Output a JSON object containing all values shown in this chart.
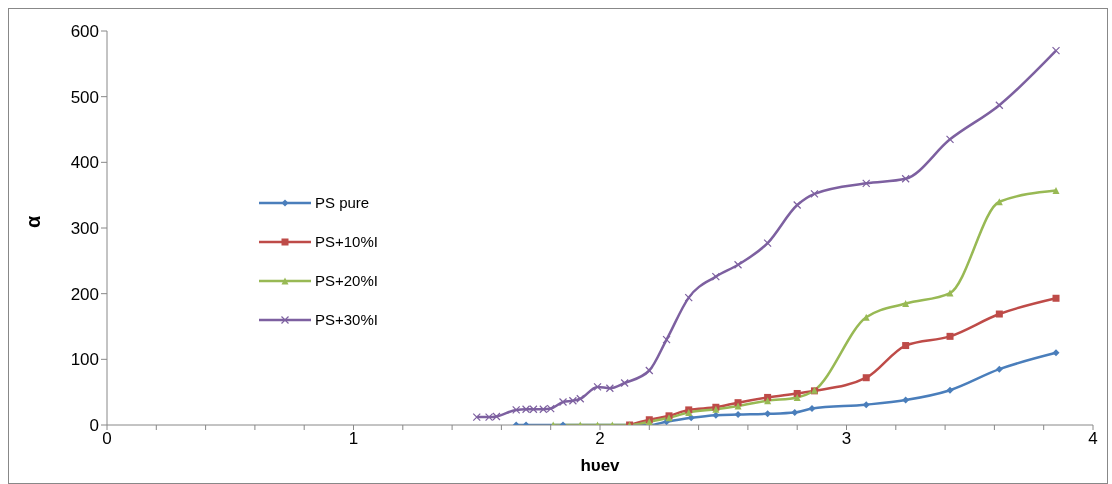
{
  "chart_data": {
    "type": "line",
    "xlabel": "hυev",
    "ylabel": "α",
    "xlim": [
      0,
      4
    ],
    "ylim": [
      0,
      600
    ],
    "xticks": [
      0,
      {
        "value": 0.2,
        "label": null
      },
      {
        "value": 0.4,
        "label": null
      },
      {
        "value": 0.6,
        "label": null
      },
      {
        "value": 0.8,
        "label": null
      },
      1,
      {
        "value": 1.2,
        "label": null
      },
      {
        "value": 1.4,
        "label": null
      },
      {
        "value": 1.6,
        "label": null
      },
      {
        "value": 1.8,
        "label": null
      },
      2,
      {
        "value": 2.2,
        "label": null
      },
      {
        "value": 2.4,
        "label": null
      },
      {
        "value": 2.6,
        "label": null
      },
      {
        "value": 2.8,
        "label": null
      },
      3,
      {
        "value": 3.2,
        "label": null
      },
      {
        "value": 3.4,
        "label": null
      },
      {
        "value": 3.6,
        "label": null
      },
      {
        "value": 3.8,
        "label": null
      },
      4
    ],
    "yticks": [
      0,
      100,
      200,
      300,
      400,
      500,
      600
    ],
    "grid": false,
    "legend": "left",
    "line_style": "solid",
    "series": [
      {
        "name": "PS pure",
        "color": "#4a7ebb",
        "marker": "diamond",
        "x": [
          1.66,
          1.7,
          1.85,
          2.2,
          2.27,
          2.37,
          2.47,
          2.56,
          2.68,
          2.79,
          2.86,
          3.08,
          3.24,
          3.42,
          3.62,
          3.85
        ],
        "values": [
          0,
          0,
          0,
          0,
          5,
          11,
          15,
          16,
          17,
          19,
          25,
          31,
          38,
          53,
          85,
          110
        ]
      },
      {
        "name": "PS+10%I",
        "color": "#be4b48",
        "marker": "square",
        "x": [
          2.12,
          2.2,
          2.28,
          2.36,
          2.47,
          2.56,
          2.68,
          2.8,
          2.87,
          3.08,
          3.24,
          3.42,
          3.62,
          3.85
        ],
        "values": [
          0,
          8,
          14,
          23,
          27,
          34,
          42,
          48,
          52,
          72,
          121,
          135,
          169,
          193
        ]
      },
      {
        "name": "PS+20%I",
        "color": "#98b954",
        "marker": "triangle",
        "x": [
          1.81,
          1.92,
          1.99,
          2.05,
          2.12,
          2.2,
          2.28,
          2.36,
          2.47,
          2.56,
          2.68,
          2.8,
          2.87,
          3.08,
          3.24,
          3.42,
          3.62,
          3.85
        ],
        "values": [
          0,
          0,
          0,
          0,
          0,
          5,
          11,
          19,
          24,
          29,
          37,
          42,
          53,
          164,
          185,
          201,
          340,
          357
        ]
      },
      {
        "name": "PS+30%I",
        "color": "#7d60a0",
        "marker": "cross",
        "x": [
          1.5,
          1.55,
          1.58,
          1.66,
          1.7,
          1.73,
          1.77,
          1.8,
          1.85,
          1.89,
          1.92,
          1.99,
          2.04,
          2.1,
          2.2,
          2.27,
          2.36,
          2.47,
          2.56,
          2.68,
          2.8,
          2.87,
          3.08,
          3.24,
          3.42,
          3.62,
          3.85
        ],
        "values": [
          12,
          12,
          13,
          23,
          24,
          24,
          24,
          25,
          35,
          37,
          40,
          58,
          56,
          64,
          83,
          130,
          194,
          226,
          244,
          277,
          335,
          352,
          368,
          375,
          435,
          487,
          570
        ]
      }
    ]
  }
}
